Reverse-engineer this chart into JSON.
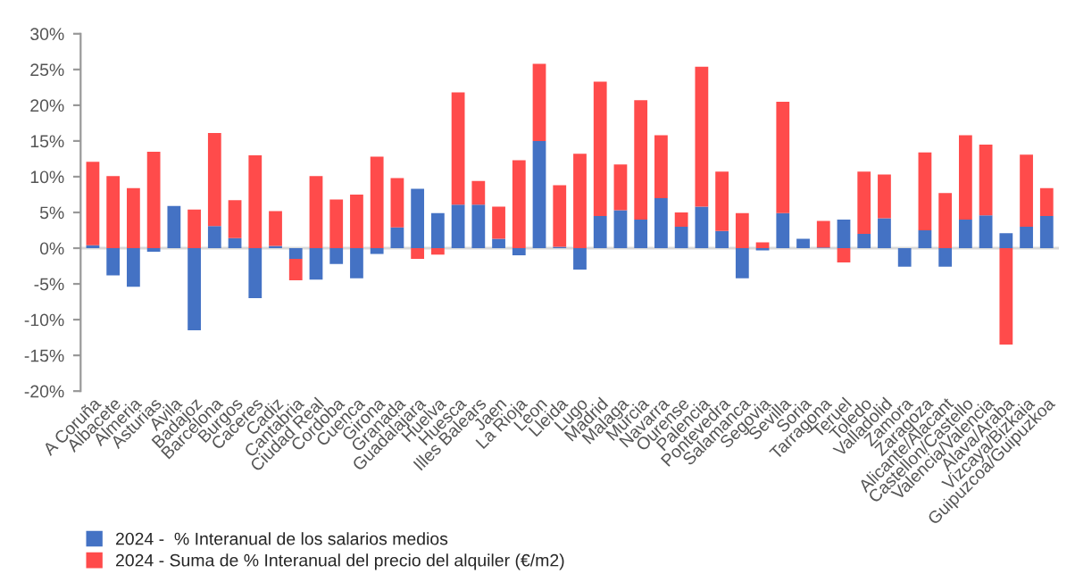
{
  "chart_data": {
    "type": "bar",
    "stacked": true,
    "categories": [
      "A Coruña",
      "Albacete",
      "Almeria",
      "Asturias",
      "Avila",
      "Badajoz",
      "Barcelona",
      "Burgos",
      "Caceres",
      "Cadiz",
      "Cantabria",
      "Ciudad Real",
      "Cordoba",
      "Cuenca",
      "Girona",
      "Granada",
      "Guadalajara",
      "Huelva",
      "Huesca",
      "Illes Balears",
      "Jaen",
      "La Rioja",
      "Leon",
      "Lleida",
      "Lugo",
      "Madrid",
      "Malaga",
      "Murcia",
      "Navarra",
      "Ourense",
      "Palencia",
      "Pontevedra",
      "Salamanca",
      "Segovia",
      "Sevilla",
      "Soria",
      "Tarragona",
      "Teruel",
      "Toledo",
      "Valladolid",
      "Zamora",
      "Zaragoza",
      "Alicante/Alacant",
      "Castellon/Castello",
      "Valencia/Valencia",
      "Alava/Araba",
      "Vizcaya/Bizkaia",
      "Guipuzcoa/Guipuzkoa"
    ],
    "series": [
      {
        "name": "2024 -  % Interanual de los salarios medios",
        "color": "#4472c4",
        "values": [
          0.4,
          -3.8,
          -5.4,
          -0.5,
          5.9,
          -11.5,
          3.1,
          1.4,
          -7.0,
          0.3,
          -1.5,
          -4.4,
          -2.2,
          -4.2,
          -0.8,
          2.9,
          8.3,
          4.9,
          6.1,
          6.1,
          1.3,
          -1.0,
          15.0,
          0.2,
          -3.0,
          4.5,
          5.3,
          4.0,
          7.0,
          3.0,
          5.8,
          2.4,
          -4.2,
          -0.3,
          4.9,
          1.3,
          0.1,
          4.0,
          2.0,
          4.2,
          -2.6,
          2.5,
          -2.6,
          4.0,
          4.6,
          2.1,
          3.0,
          4.5
        ]
      },
      {
        "name": "2024 - Suma de % Interanual del precio del alquiler (€/m2)",
        "color": "#ff4b4b",
        "values": [
          11.7,
          10.1,
          8.4,
          13.5,
          0,
          5.4,
          13.0,
          5.3,
          13.0,
          4.9,
          -3.0,
          10.1,
          6.8,
          7.5,
          12.8,
          6.9,
          -1.5,
          -0.9,
          15.7,
          3.3,
          4.5,
          12.3,
          10.8,
          8.6,
          13.2,
          18.8,
          6.4,
          16.7,
          8.8,
          2.0,
          19.6,
          8.3,
          4.9,
          0.8,
          15.6,
          0,
          3.7,
          -2.0,
          8.7,
          6.1,
          0,
          10.9,
          7.7,
          11.8,
          9.9,
          -13.5,
          10.1,
          3.9
        ]
      }
    ],
    "ylim": [
      -20,
      30
    ],
    "yticks": [
      {
        "value": -20,
        "label": "-20%"
      },
      {
        "value": -15,
        "label": "-15%"
      },
      {
        "value": -10,
        "label": "-10%"
      },
      {
        "value": -5,
        "label": "-5%"
      },
      {
        "value": 0,
        "label": "0%"
      },
      {
        "value": 5,
        "label": "5%"
      },
      {
        "value": 10,
        "label": "10%"
      },
      {
        "value": 15,
        "label": "15%"
      },
      {
        "value": 20,
        "label": "20%"
      },
      {
        "value": 25,
        "label": "25%"
      },
      {
        "value": 30,
        "label": "30%"
      }
    ],
    "ref_lines": [
      {
        "axis": "y",
        "value": 0,
        "color": "#d9d9d9"
      }
    ],
    "grid": false,
    "legend": "bottom"
  }
}
